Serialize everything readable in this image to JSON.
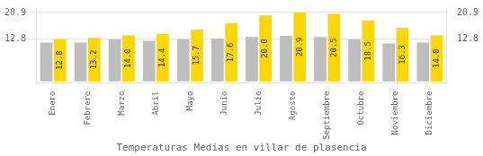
{
  "chart_data": {
    "type": "bar",
    "title": "Temperaturas Medias en villar de plasencia",
    "categories": [
      "Enero",
      "Febrero",
      "Marzo",
      "Abril",
      "Mayo",
      "Junio",
      "Julio",
      "Agosto",
      "Septiembre",
      "Octubre",
      "Noviembre",
      "Diciembre"
    ],
    "series": [
      {
        "color": "#BEBEBE",
        "values": [
          11.8,
          11.8,
          12.8,
          12.3,
          12.8,
          13.0,
          13.5,
          13.8,
          13.5,
          12.8,
          11.5,
          11.8
        ]
      },
      {
        "color": "#FFD700",
        "values": [
          12.8,
          13.2,
          14.0,
          14.4,
          15.7,
          17.6,
          20.0,
          20.9,
          20.5,
          18.5,
          16.3,
          14.0
        ],
        "data_labels": true,
        "value_labels": [
          "12.8",
          "13.2",
          "14.0",
          "14.4",
          "15.7",
          "17.6",
          "20.0",
          "20.9",
          "20.5",
          "18.5",
          "16.3",
          "14.0"
        ]
      }
    ],
    "ylim": [
      -0.5,
      22.2585
    ],
    "yticks": [
      12.8,
      20.9
    ],
    "grid": true
  }
}
